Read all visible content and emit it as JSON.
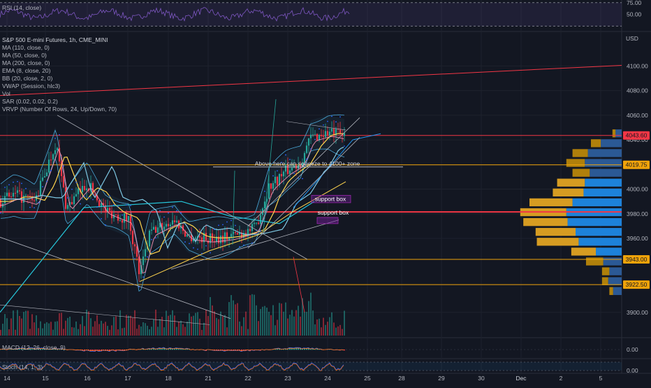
{
  "chart_data": {
    "type": "candlestick",
    "symbol_title": "S&P 500 E-mini Futures, 1h, CME_MINI",
    "price_axis": {
      "unit": "USD",
      "ticks": [
        4100.0,
        4080.0,
        4060.0,
        4040.0,
        4019.75,
        4000.0,
        3980.0,
        3960.0,
        3943.0,
        3922.5,
        3900.0
      ],
      "range": [
        3880,
        4128
      ]
    },
    "x_axis_ticks": [
      "14",
      "15",
      "16",
      "17",
      "18",
      "21",
      "22",
      "23",
      "24",
      "25",
      "28",
      "29",
      "30",
      "Dec",
      "2",
      "5"
    ],
    "indicators": [
      "MA (110, close, 0)",
      "MA (50, close, 0)",
      "MA (200, close, 0)",
      "EMA (8, close, 20)",
      "BB (20, close, 2, 0)",
      "VWAP (Session, hlc3)",
      "Vol",
      "SAR (0.02, 0.02, 0.2)",
      "VRVP (Number Of Rows, 24, Up/Down, 70)"
    ],
    "price_labels": [
      {
        "label": "4043.60",
        "value": 4043.6,
        "color": "#f23645"
      },
      {
        "label": "4019.75",
        "value": 4019.75,
        "color": "#f0a30a"
      },
      {
        "label": "3943.00",
        "value": 3943.0,
        "color": "#f0a30a"
      },
      {
        "label": "3922.50",
        "value": 3922.5,
        "color": "#f0a30a"
      }
    ],
    "horizontal_levels": [
      {
        "value": 4043.6,
        "color": "#f23645"
      },
      {
        "value": 4019.75,
        "color": "#f0a30a"
      },
      {
        "value": 3981.5,
        "color": "#f23645"
      },
      {
        "value": 3943.0,
        "color": "#f0a30a"
      },
      {
        "value": 3922.5,
        "color": "#f0a30a"
      }
    ],
    "annotations": [
      {
        "text": "Above here can squeeze to  4100+ zone"
      },
      {
        "text": "support box"
      },
      {
        "text": "support box"
      }
    ],
    "rsi": {
      "title": "RSI (14, close)",
      "ticks": [
        75.0,
        50.0
      ]
    },
    "macd": {
      "title": "MACD (12, 26, close, 9)",
      "ticks": [
        0.0
      ]
    },
    "stoch": {
      "title": "Stoch (14, 1, 3)",
      "ticks": [
        0.0
      ]
    },
    "volume_profile": [
      {
        "price": 4045,
        "up": 5,
        "down": 10
      },
      {
        "price": 4037,
        "up": 16,
        "down": 34
      },
      {
        "price": 4029,
        "up": 25,
        "down": 55
      },
      {
        "price": 4021,
        "up": 30,
        "down": 60
      },
      {
        "price": 4013,
        "up": 28,
        "down": 52
      },
      {
        "price": 4005,
        "up": 45,
        "down": 60
      },
      {
        "price": 3997,
        "up": 50,
        "down": 62
      },
      {
        "price": 3989,
        "up": 70,
        "down": 80
      },
      {
        "price": 3981,
        "up": 75,
        "down": 90
      },
      {
        "price": 3973,
        "up": 72,
        "down": 88
      },
      {
        "price": 3965,
        "up": 65,
        "down": 75
      },
      {
        "price": 3957,
        "up": 68,
        "down": 70
      },
      {
        "price": 3949,
        "up": 40,
        "down": 42
      },
      {
        "price": 3941,
        "up": 28,
        "down": 30
      },
      {
        "price": 3933,
        "up": 12,
        "down": 20
      },
      {
        "price": 3925,
        "up": 10,
        "down": 22
      },
      {
        "price": 3917,
        "up": 6,
        "down": 14
      }
    ]
  },
  "colors": {
    "background": "#131722",
    "up": "#26a69a",
    "down": "#f23645",
    "axis_text": "#b2b5be",
    "ma110": "#7ec8e3",
    "ma50": "#ffd54f",
    "ema8": "#f48fb1",
    "bb": "#4aa8d8",
    "vwap": "#26c6da",
    "sar": "#2962ff",
    "support_box": "#7b1fa2",
    "vp_up": "#2c5d9c",
    "vp_down": "#b8860b",
    "vp_up_value": "#1e88e5",
    "vp_down_value": "#e0a323"
  }
}
